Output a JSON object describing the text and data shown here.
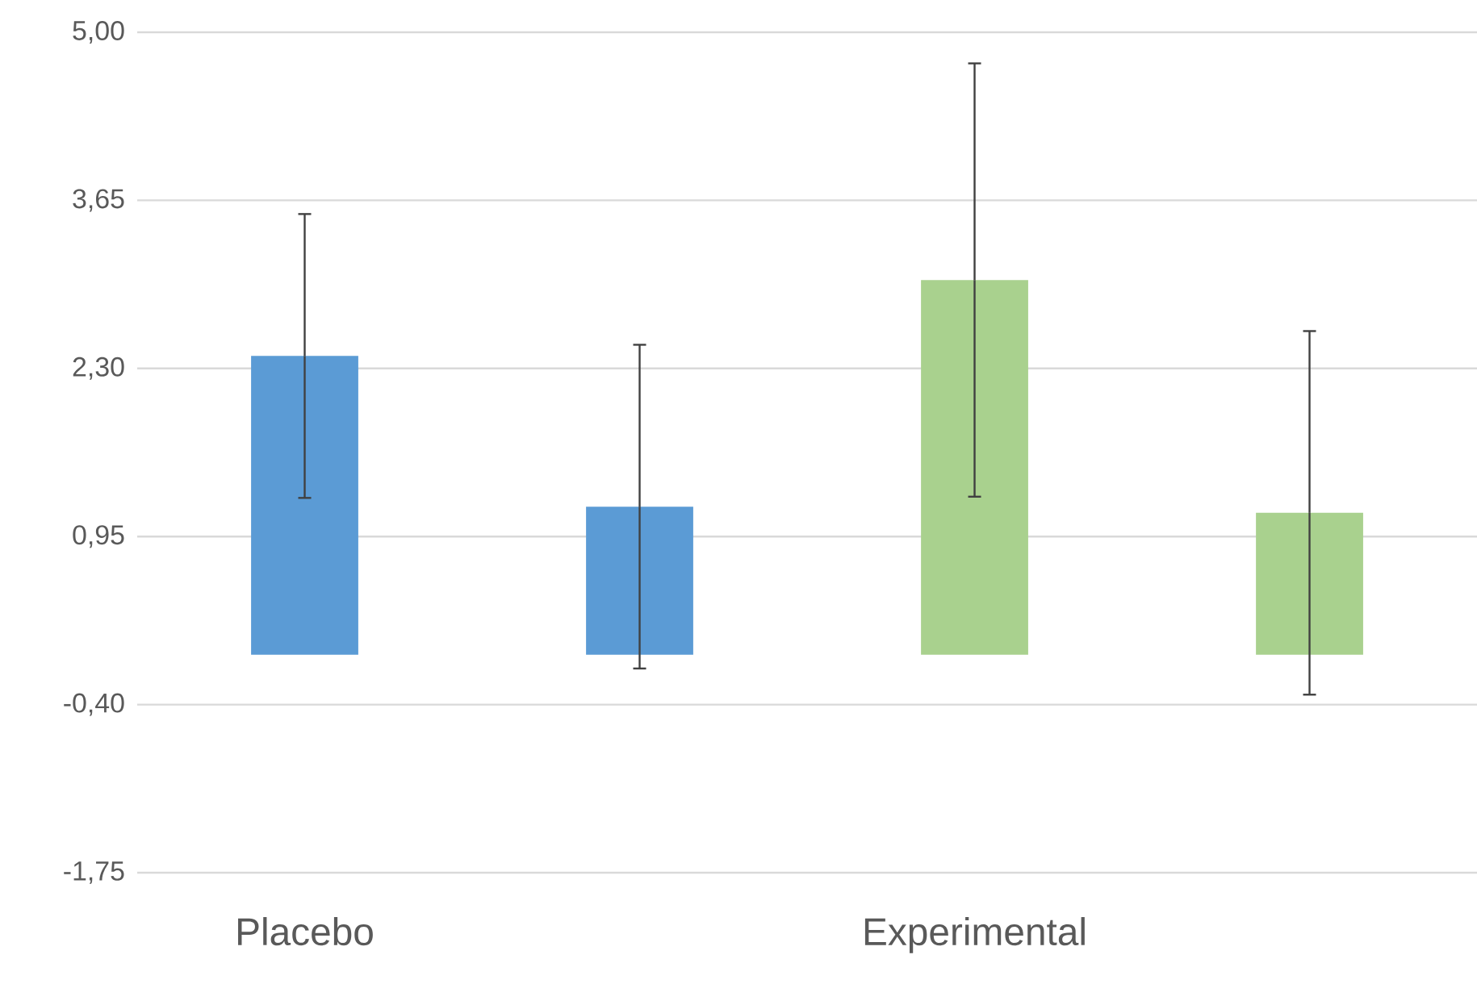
{
  "chart_data": {
    "type": "bar",
    "categories": [
      "Placebo",
      null,
      "Experimental",
      null
    ],
    "values": [
      2.4,
      1.19,
      3.01,
      1.14
    ],
    "colors": [
      "#5b9bd5",
      "#5b9bd5",
      "#a9d18e",
      "#a9d18e"
    ],
    "errors": [
      1.14,
      1.3,
      1.74,
      1.46
    ],
    "ylim": [
      -1.75,
      5.0
    ],
    "yticks": [
      {
        "value": -1.75,
        "label": "-1,75"
      },
      {
        "value": -0.4,
        "label": "-0,40"
      },
      {
        "value": 0.95,
        "label": "0,95"
      },
      {
        "value": 2.3,
        "label": "2,30"
      },
      {
        "value": 3.65,
        "label": "3,65"
      },
      {
        "value": 5.0,
        "label": "5,00"
      }
    ],
    "grid": "y"
  }
}
